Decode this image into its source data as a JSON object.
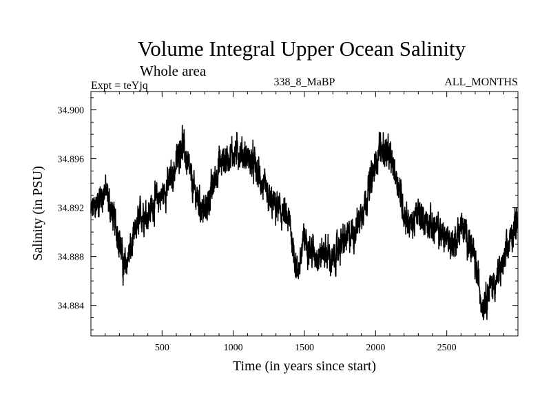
{
  "chart_data": {
    "type": "line",
    "title": "Volume Integral Upper Ocean Salinity",
    "subtitle": "Whole area",
    "expt_label": "Expt = teYjq",
    "run_label": "338_8_MaBP",
    "months_label": "ALL_MONTHS",
    "xlabel": "Time (in years since start)",
    "ylabel": "Salinity (in PSU)",
    "xlim": [
      0,
      3000
    ],
    "ylim": [
      34.8815,
      34.9015
    ],
    "xticks": [
      500,
      1000,
      1500,
      2000,
      2500
    ],
    "xtick_labels": [
      "500",
      "1000",
      "1500",
      "2000",
      "2500"
    ],
    "yticks": [
      34.884,
      34.888,
      34.892,
      34.896,
      34.9
    ],
    "ytick_labels": [
      "34.884",
      "34.888",
      "34.892",
      "34.896",
      "34.900"
    ],
    "line_color": "#000000",
    "series": [
      {
        "name": "salinity",
        "x": [
          0,
          50,
          100,
          150,
          200,
          230,
          280,
          350,
          400,
          450,
          500,
          550,
          600,
          640,
          680,
          720,
          760,
          800,
          850,
          900,
          950,
          1000,
          1050,
          1100,
          1150,
          1200,
          1250,
          1300,
          1350,
          1400,
          1450,
          1500,
          1550,
          1600,
          1650,
          1700,
          1750,
          1800,
          1850,
          1900,
          1950,
          2000,
          2030,
          2080,
          2120,
          2160,
          2200,
          2250,
          2300,
          2350,
          2400,
          2450,
          2500,
          2550,
          2600,
          2650,
          2700,
          2750,
          2800,
          2850,
          2900,
          2950,
          3000
        ],
        "y": [
          34.8915,
          34.8925,
          34.8935,
          34.8915,
          34.8895,
          34.887,
          34.8885,
          34.8915,
          34.8915,
          34.8925,
          34.893,
          34.894,
          34.8955,
          34.8975,
          34.8955,
          34.8935,
          34.8925,
          34.8915,
          34.8935,
          34.8955,
          34.896,
          34.8965,
          34.8965,
          34.896,
          34.8955,
          34.894,
          34.8925,
          34.892,
          34.8915,
          34.8905,
          34.8865,
          34.8895,
          34.8885,
          34.888,
          34.8885,
          34.8875,
          34.889,
          34.8895,
          34.89,
          34.8915,
          34.8935,
          34.8955,
          34.897,
          34.8965,
          34.8955,
          34.894,
          34.8915,
          34.8905,
          34.8915,
          34.891,
          34.8905,
          34.89,
          34.8895,
          34.889,
          34.8905,
          34.8895,
          34.8875,
          34.884,
          34.8855,
          34.886,
          34.8875,
          34.8895,
          34.8915
        ]
      }
    ]
  }
}
